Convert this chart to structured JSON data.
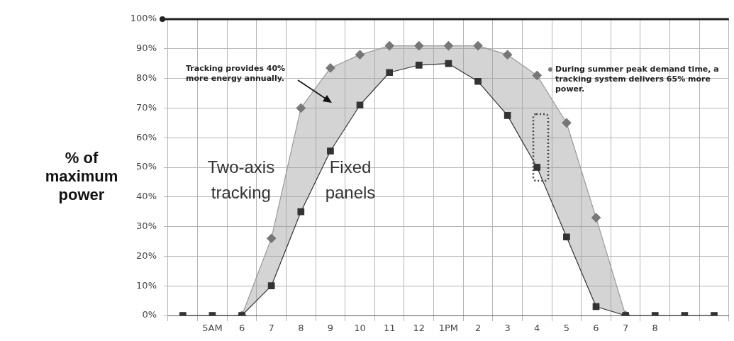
{
  "chart_data": {
    "type": "line",
    "ylabel": "% of maximum power",
    "categories": [
      null,
      "5AM",
      "6",
      "7",
      "8",
      "9",
      "10",
      "11",
      "12",
      "1PM",
      "2",
      "3",
      "4",
      "5",
      "6",
      "7",
      "8",
      null,
      null
    ],
    "series": [
      {
        "name": "Two-axis tracking",
        "color": "#777777",
        "marker": "diamond",
        "values": [
          null,
          null,
          0,
          26,
          70,
          83.5,
          88,
          91,
          91,
          91,
          91,
          88,
          81,
          65,
          33,
          0,
          null,
          null,
          null
        ]
      },
      {
        "name": "Fixed panels",
        "color": "#333333",
        "marker": "square",
        "values": [
          0,
          0,
          0,
          10,
          35,
          55.5,
          71,
          82,
          84.5,
          85,
          79,
          67.5,
          50,
          26.5,
          3,
          0,
          0,
          0,
          0
        ]
      }
    ],
    "ylim": [
      0,
      100
    ],
    "yticks": [
      {
        "value": 0,
        "label": "0%"
      },
      {
        "value": 10,
        "label": "10%"
      },
      {
        "value": 20,
        "label": "20%"
      },
      {
        "value": 30,
        "label": "30%"
      },
      {
        "value": 40,
        "label": "40%"
      },
      {
        "value": 50,
        "label": "50%"
      },
      {
        "value": 60,
        "label": "60%"
      },
      {
        "value": 70,
        "label": "70%"
      },
      {
        "value": 80,
        "label": "80%"
      },
      {
        "value": 90,
        "label": "90%"
      },
      {
        "value": 100,
        "label": "100%"
      }
    ],
    "grid": true,
    "annotations": [
      "Tracking provides 40% more energy annually.",
      "During summer peak demand time, a tracking system delivers 65% more power."
    ]
  }
}
